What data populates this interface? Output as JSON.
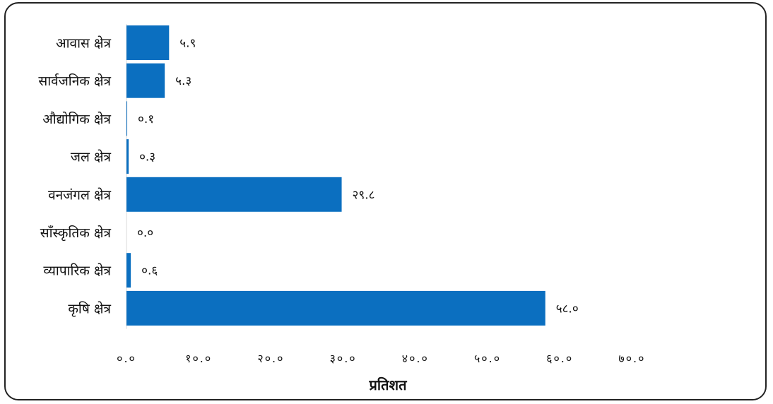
{
  "chart_data": {
    "type": "bar",
    "orientation": "horizontal",
    "categories": [
      "आवास क्षेत्र",
      "सार्वजनिक क्षेत्र",
      "औद्योगिक क्षेत्र",
      "जल क्षेत्र",
      "वनजंगल क्षेत्र",
      "साँस्कृतिक क्षेत्र",
      "व्यापारिक क्षेत्र",
      "कृषि क्षेत्र"
    ],
    "values": [
      5.9,
      5.3,
      0.1,
      0.3,
      29.8,
      0.0,
      0.6,
      58.0
    ],
    "value_labels": [
      "५.९",
      "५.३",
      "०.१",
      "०.३",
      "२९.८",
      "०.०",
      "०.६",
      "५८.०"
    ],
    "xticks": [
      0,
      10,
      20,
      30,
      40,
      50,
      60,
      70
    ],
    "xtick_labels": [
      "०.०",
      "१०.०",
      "२०.०",
      "३०.०",
      "४०.०",
      "५०.०",
      "६०.०",
      "७०.०"
    ],
    "xlim": [
      0,
      70
    ],
    "xlabel": "प्रतिशत",
    "ylabel": "",
    "title": "",
    "grid": false,
    "legend": "none",
    "bar_color": "#0b6fc0"
  }
}
